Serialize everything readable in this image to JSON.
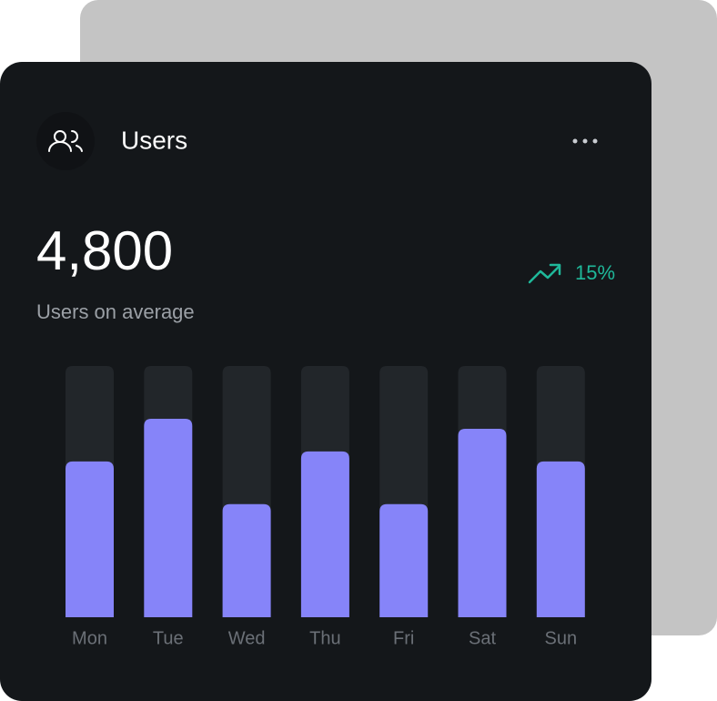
{
  "header": {
    "title": "Users"
  },
  "stat": {
    "value": "4,800",
    "caption": "Users on average",
    "change": "15%"
  },
  "chart_data": {
    "type": "bar",
    "categories": [
      "Mon",
      "Tue",
      "Wed",
      "Thu",
      "Fri",
      "Sat",
      "Sun"
    ],
    "values": [
      62,
      79,
      45,
      66,
      45,
      75,
      62
    ],
    "color": "#8684f9",
    "ylim": [
      0,
      100
    ]
  }
}
